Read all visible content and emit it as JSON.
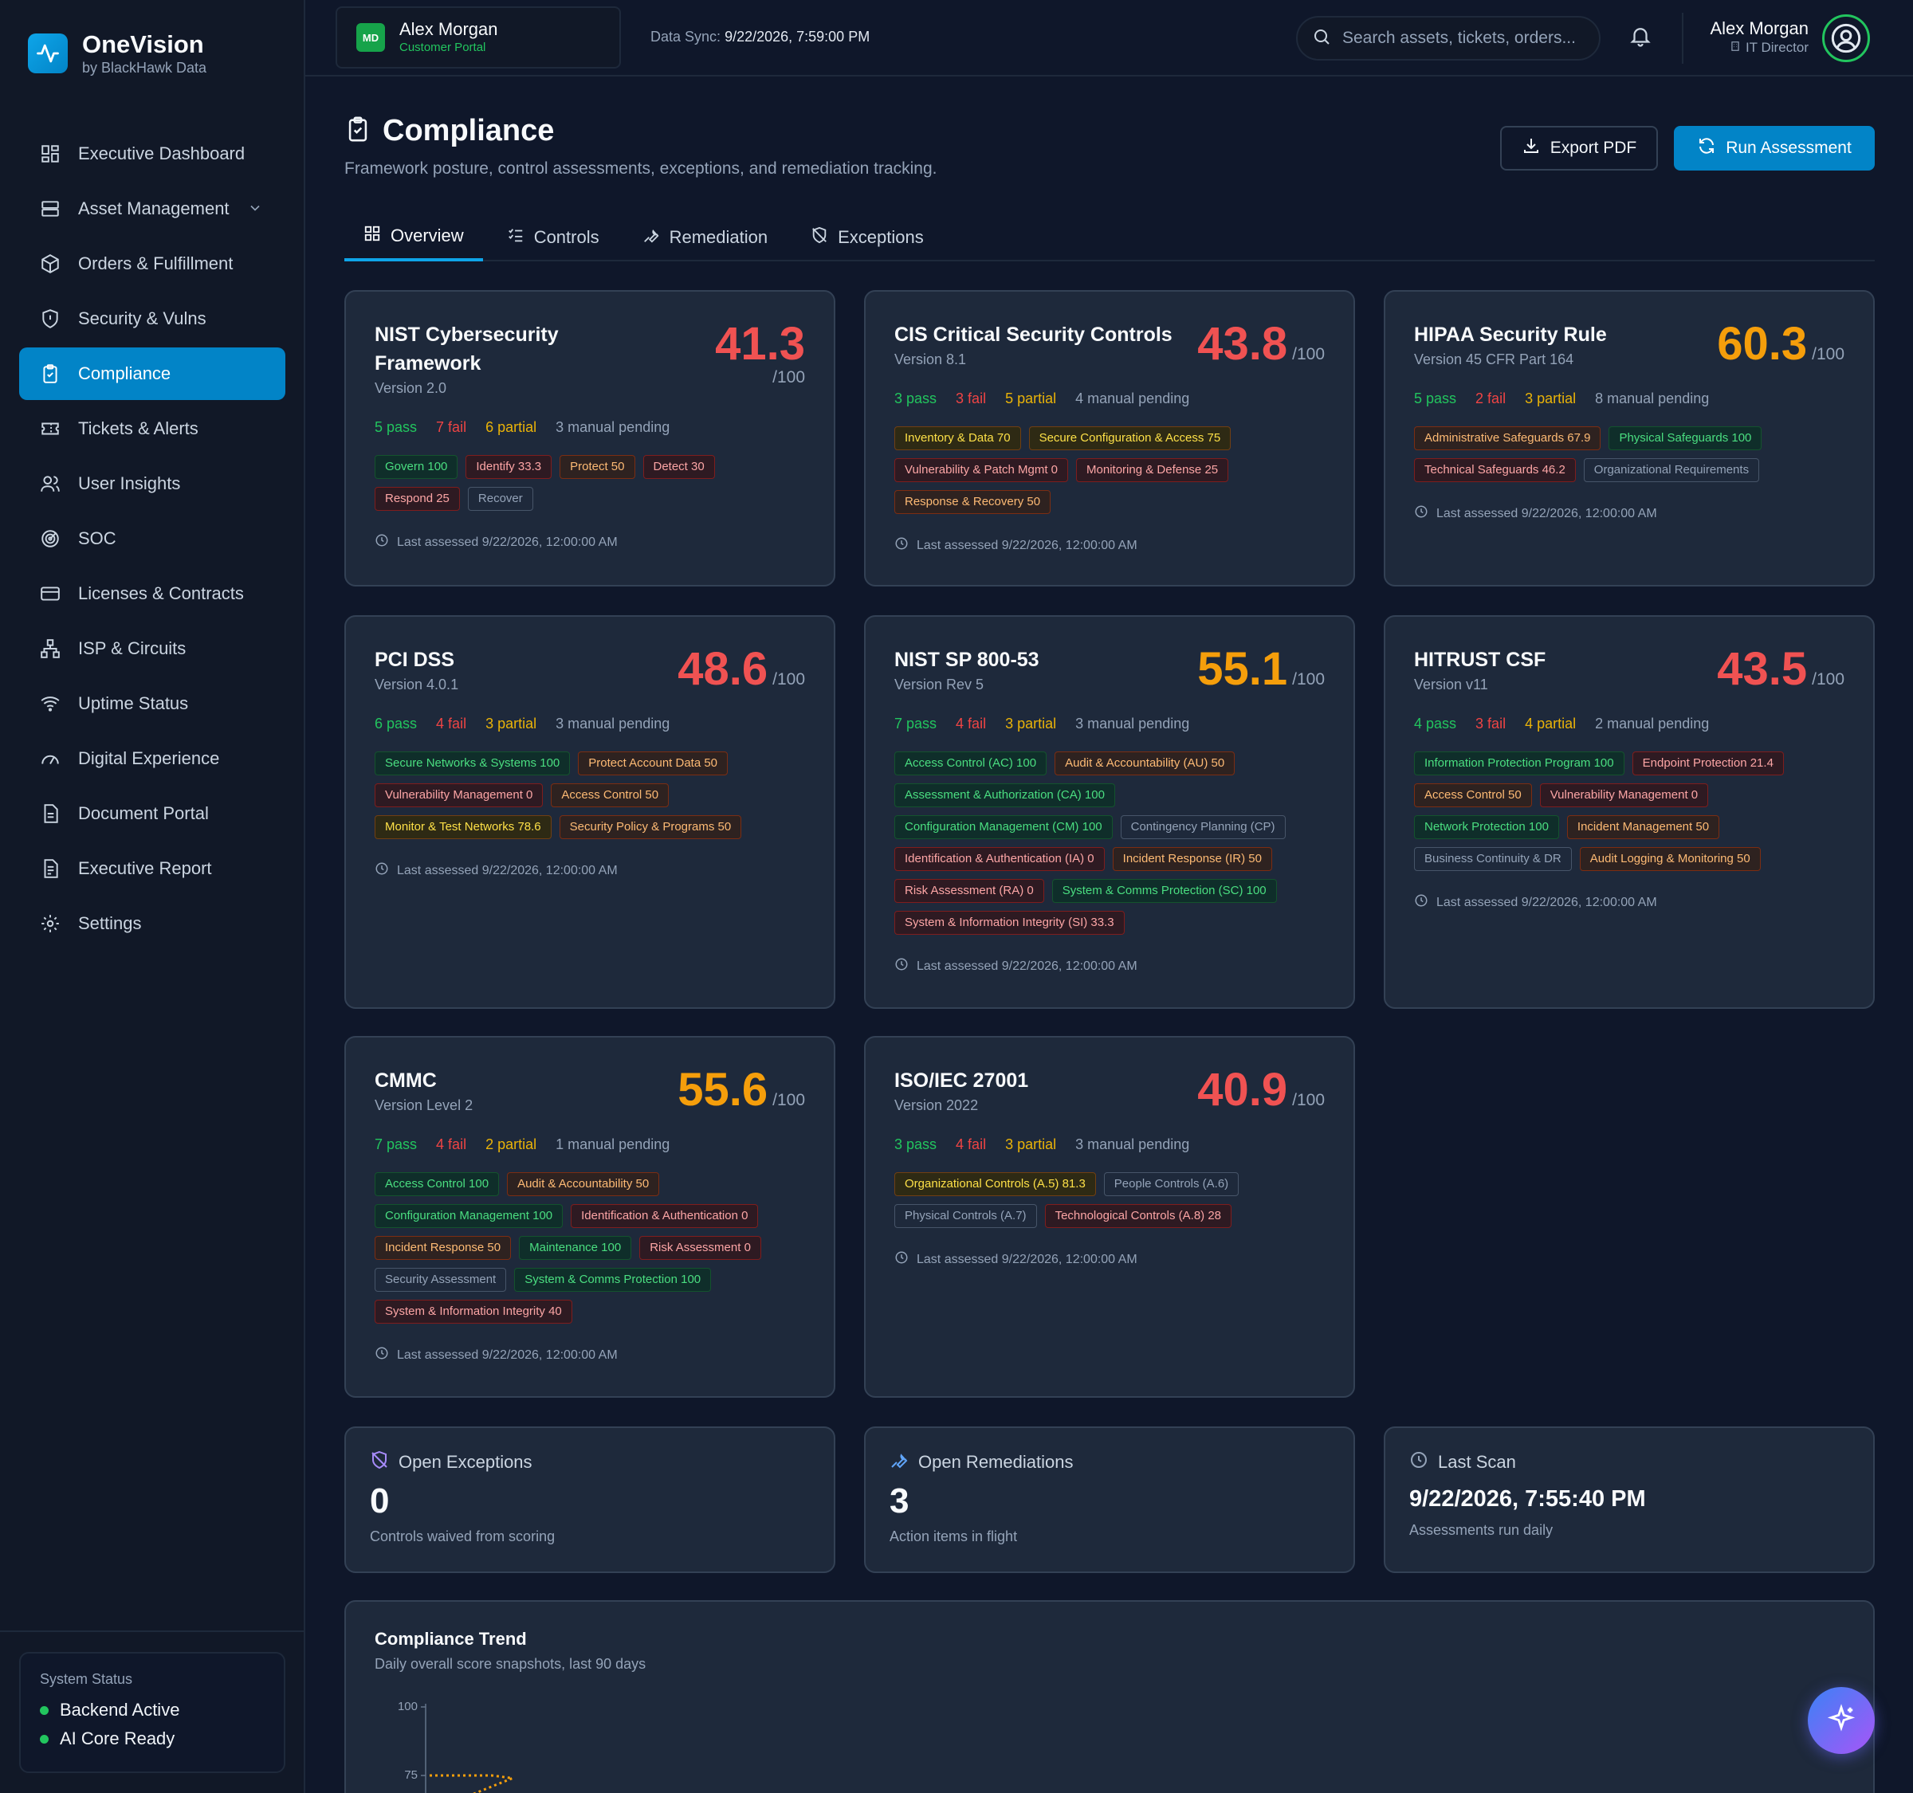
{
  "brand": {
    "name": "OneVision",
    "sub": "by BlackHawk Data"
  },
  "nav": [
    {
      "label": "Executive Dashboard",
      "icon": "dashboard-icon"
    },
    {
      "label": "Asset Management",
      "icon": "server-icon"
    },
    {
      "label": "Orders & Fulfillment",
      "icon": "package-icon"
    },
    {
      "label": "Security & Vulns",
      "icon": "shield-icon"
    },
    {
      "label": "Compliance",
      "icon": "clipboard-check-icon"
    },
    {
      "label": "Tickets & Alerts",
      "icon": "ticket-icon"
    },
    {
      "label": "User Insights",
      "icon": "users-icon"
    },
    {
      "label": "SOC",
      "icon": "radar-icon"
    },
    {
      "label": "Licenses & Contracts",
      "icon": "card-icon"
    },
    {
      "label": "ISP & Circuits",
      "icon": "network-icon"
    },
    {
      "label": "Uptime Status",
      "icon": "wifi-icon"
    },
    {
      "label": "Digital Experience",
      "icon": "gauge-icon"
    },
    {
      "label": "Document Portal",
      "icon": "document-icon"
    },
    {
      "label": "Executive Report",
      "icon": "report-icon"
    },
    {
      "label": "Settings",
      "icon": "gear-icon"
    }
  ],
  "system_status": {
    "title": "System Status",
    "backend": "Backend Active",
    "ai": "AI Core Ready"
  },
  "header": {
    "customer_initials": "MD",
    "customer_name": "Alex Morgan",
    "customer_sub": "Customer Portal",
    "sync_label": "Data Sync:",
    "sync_value": "9/22/2026, 7:59:00 PM",
    "search_placeholder": "Search assets, tickets, orders...",
    "user_name": "Alex Morgan",
    "user_role": "IT Director"
  },
  "page": {
    "title": "Compliance",
    "subtitle": "Framework posture, control assessments, exceptions, and remediation tracking.",
    "export_label": "Export PDF",
    "run_label": "Run Assessment"
  },
  "tabs": [
    "Overview",
    "Controls",
    "Remediation",
    "Exceptions"
  ],
  "colors": {
    "red": "#f05252",
    "orange": "#f59e0b",
    "green": "#22c55e",
    "accent": "#0284c7"
  },
  "frameworks": [
    {
      "name": "NIST Cybersecurity Framework",
      "version": "Version 2.0",
      "score": "41.3",
      "color": "red",
      "pass": "5 pass",
      "fail": "7 fail",
      "partial": "6 partial",
      "manual": "3 manual pending",
      "tags": [
        [
          "Govern 100",
          "g"
        ],
        [
          "Identify 33.3",
          "r"
        ],
        [
          "Protect 50",
          "o"
        ],
        [
          "Detect 30",
          "r"
        ],
        [
          "Respond 25",
          "r"
        ],
        [
          "Recover",
          "n"
        ]
      ],
      "assessed": "Last assessed 9/22/2026, 12:00:00 AM"
    },
    {
      "name": "CIS Critical Security Controls",
      "version": "Version 8.1",
      "score": "43.8",
      "color": "red",
      "pass": "3 pass",
      "fail": "3 fail",
      "partial": "5 partial",
      "manual": "4 manual pending",
      "tags": [
        [
          "Inventory & Data 70",
          "y"
        ],
        [
          "Secure Configuration & Access 75",
          "y"
        ],
        [
          "Vulnerability & Patch Mgmt 0",
          "r"
        ],
        [
          "Monitoring & Defense 25",
          "r"
        ],
        [
          "Response & Recovery 50",
          "o"
        ]
      ],
      "assessed": "Last assessed 9/22/2026, 12:00:00 AM"
    },
    {
      "name": "HIPAA Security Rule",
      "version": "Version 45 CFR Part 164",
      "score": "60.3",
      "color": "orange",
      "pass": "5 pass",
      "fail": "2 fail",
      "partial": "3 partial",
      "manual": "8 manual pending",
      "tags": [
        [
          "Administrative Safeguards 67.9",
          "o"
        ],
        [
          "Physical Safeguards 100",
          "g"
        ],
        [
          "Technical Safeguards 46.2",
          "r"
        ],
        [
          "Organizational Requirements",
          "n"
        ]
      ],
      "assessed": "Last assessed 9/22/2026, 12:00:00 AM"
    },
    {
      "name": "PCI DSS",
      "version": "Version 4.0.1",
      "score": "48.6",
      "color": "red",
      "pass": "6 pass",
      "fail": "4 fail",
      "partial": "3 partial",
      "manual": "3 manual pending",
      "tags": [
        [
          "Secure Networks & Systems 100",
          "g"
        ],
        [
          "Protect Account Data 50",
          "o"
        ],
        [
          "Vulnerability Management 0",
          "r"
        ],
        [
          "Access Control 50",
          "o"
        ],
        [
          "Monitor & Test Networks 78.6",
          "y"
        ],
        [
          "Security Policy & Programs 50",
          "o"
        ]
      ],
      "assessed": "Last assessed 9/22/2026, 12:00:00 AM"
    },
    {
      "name": "NIST SP 800-53",
      "version": "Version Rev 5",
      "score": "55.1",
      "color": "orange",
      "pass": "7 pass",
      "fail": "4 fail",
      "partial": "3 partial",
      "manual": "3 manual pending",
      "tags": [
        [
          "Access Control (AC) 100",
          "g"
        ],
        [
          "Audit & Accountability (AU) 50",
          "o"
        ],
        [
          "Assessment & Authorization (CA) 100",
          "g"
        ],
        [
          "Configuration Management (CM) 100",
          "g"
        ],
        [
          "Contingency Planning (CP)",
          "n"
        ],
        [
          "Identification & Authentication (IA) 0",
          "r"
        ],
        [
          "Incident Response (IR) 50",
          "o"
        ],
        [
          "Risk Assessment (RA) 0",
          "r"
        ],
        [
          "System & Comms Protection (SC) 100",
          "g"
        ],
        [
          "System & Information Integrity (SI) 33.3",
          "r"
        ]
      ],
      "assessed": "Last assessed 9/22/2026, 12:00:00 AM"
    },
    {
      "name": "HITRUST CSF",
      "version": "Version v11",
      "score": "43.5",
      "color": "red",
      "pass": "4 pass",
      "fail": "3 fail",
      "partial": "4 partial",
      "manual": "2 manual pending",
      "tags": [
        [
          "Information Protection Program 100",
          "g"
        ],
        [
          "Endpoint Protection 21.4",
          "r"
        ],
        [
          "Access Control 50",
          "o"
        ],
        [
          "Vulnerability Management 0",
          "r"
        ],
        [
          "Network Protection 100",
          "g"
        ],
        [
          "Incident Management 50",
          "o"
        ],
        [
          "Business Continuity & DR",
          "n"
        ],
        [
          "Audit Logging & Monitoring 50",
          "o"
        ]
      ],
      "assessed": "Last assessed 9/22/2026, 12:00:00 AM"
    },
    {
      "name": "CMMC",
      "version": "Version Level 2",
      "score": "55.6",
      "color": "orange",
      "pass": "7 pass",
      "fail": "4 fail",
      "partial": "2 partial",
      "manual": "1 manual pending",
      "tags": [
        [
          "Access Control 100",
          "g"
        ],
        [
          "Audit & Accountability 50",
          "o"
        ],
        [
          "Configuration Management 100",
          "g"
        ],
        [
          "Identification & Authentication 0",
          "r"
        ],
        [
          "Incident Response 50",
          "o"
        ],
        [
          "Maintenance 100",
          "g"
        ],
        [
          "Risk Assessment 0",
          "r"
        ],
        [
          "Security Assessment",
          "n"
        ],
        [
          "System & Comms Protection 100",
          "g"
        ],
        [
          "System & Information Integrity 40",
          "r"
        ]
      ],
      "assessed": "Last assessed 9/22/2026, 12:00:00 AM"
    },
    {
      "name": "ISO/IEC 27001",
      "version": "Version 2022",
      "score": "40.9",
      "color": "red",
      "pass": "3 pass",
      "fail": "4 fail",
      "partial": "3 partial",
      "manual": "3 manual pending",
      "tags": [
        [
          "Organizational Controls (A.5) 81.3",
          "y"
        ],
        [
          "People Controls (A.6)",
          "n"
        ],
        [
          "Physical Controls (A.7)",
          "n"
        ],
        [
          "Technological Controls (A.8) 28",
          "r"
        ]
      ],
      "assessed": "Last assessed 9/22/2026, 12:00:00 AM"
    }
  ],
  "score_den": "/100",
  "stats": {
    "exceptions": {
      "title": "Open Exceptions",
      "value": "0",
      "sub": "Controls waived from scoring"
    },
    "remediations": {
      "title": "Open Remediations",
      "value": "3",
      "sub": "Action items in flight"
    },
    "scan": {
      "title": "Last Scan",
      "value": "9/22/2026, 7:55:40 PM",
      "sub": "Assessments run daily"
    }
  },
  "trend": {
    "title": "Compliance Trend",
    "subtitle": "Daily overall score snapshots, last 90 days",
    "y_ticks": [
      "100",
      "75"
    ]
  },
  "chart_data": {
    "type": "line",
    "title": "Compliance Trend",
    "subtitle": "Daily overall score snapshots, last 90 days",
    "y_ticks": [
      100,
      75
    ],
    "series": [
      {
        "values": [
          75,
          75,
          75,
          75,
          74
        ]
      }
    ]
  }
}
